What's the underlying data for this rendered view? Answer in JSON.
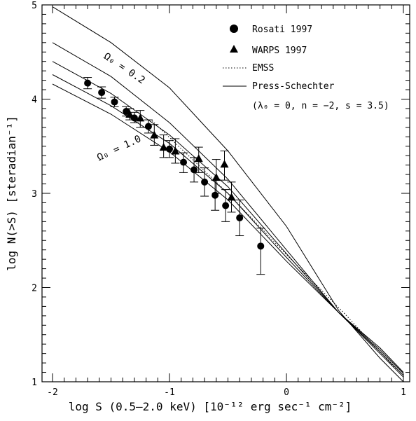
{
  "chart_data": {
    "type": "scatter",
    "title": "",
    "xlabel": "log S (0.5–2.0 keV) [10⁻¹² erg sec⁻¹ cm⁻²]",
    "ylabel": "log N(>S) [steradian⁻¹]",
    "xlim": [
      -2.1,
      1.05
    ],
    "ylim": [
      1,
      5
    ],
    "xticks": [
      "-2",
      "-1",
      "0",
      "1"
    ],
    "yticks": [
      "1",
      "2",
      "3",
      "4",
      "5"
    ],
    "grid": false,
    "legend": {
      "placement": "top-right",
      "entries": [
        {
          "label": "Rosati 1997",
          "marker": "circle"
        },
        {
          "label": "WARPS 1997",
          "marker": "triangle"
        },
        {
          "label": "EMSS",
          "marker": "dotted-line"
        },
        {
          "label": "Press-Schechter",
          "marker": "solid-line"
        }
      ],
      "note": "(λ₀ = 0, n = −2, s = 3.5)"
    },
    "annotations": [
      {
        "text": "Ω₀ = 0.2",
        "x": -1.4,
        "y": 4.3
      },
      {
        "text": "Ω₀ = 1.0",
        "x": -1.42,
        "y": 3.45
      }
    ],
    "series": [
      {
        "name": "Rosati 1997",
        "kind": "points",
        "marker": "circle",
        "points": [
          {
            "x": -1.7,
            "y": 4.17,
            "lo": 4.11,
            "hi": 4.23
          },
          {
            "x": -1.58,
            "y": 4.07,
            "lo": 4.01,
            "hi": 4.13
          },
          {
            "x": -1.47,
            "y": 3.97,
            "lo": 3.92,
            "hi": 4.02
          },
          {
            "x": -1.37,
            "y": 3.87,
            "lo": 3.82,
            "hi": 3.92
          },
          {
            "x": -1.3,
            "y": 3.8,
            "lo": 3.75,
            "hi": 3.86
          },
          {
            "x": -1.18,
            "y": 3.71,
            "lo": 3.64,
            "hi": 3.78
          },
          {
            "x": -1.0,
            "y": 3.47,
            "lo": 3.38,
            "hi": 3.56
          },
          {
            "x": -0.88,
            "y": 3.33,
            "lo": 3.22,
            "hi": 3.43
          },
          {
            "x": -0.79,
            "y": 3.25,
            "lo": 3.12,
            "hi": 3.38
          },
          {
            "x": -0.7,
            "y": 3.12,
            "lo": 2.97,
            "hi": 3.27
          },
          {
            "x": -0.61,
            "y": 2.98,
            "lo": 2.82,
            "hi": 3.14
          },
          {
            "x": -0.52,
            "y": 2.87,
            "lo": 2.7,
            "hi": 3.04
          },
          {
            "x": -0.4,
            "y": 2.74,
            "lo": 2.55,
            "hi": 2.93
          },
          {
            "x": -0.22,
            "y": 2.44,
            "lo": 2.14,
            "hi": 2.63
          }
        ]
      },
      {
        "name": "WARPS 1997",
        "kind": "points",
        "marker": "triangle",
        "points": [
          {
            "x": -1.34,
            "y": 3.84,
            "lo": 3.78,
            "hi": 3.9
          },
          {
            "x": -1.25,
            "y": 3.8,
            "lo": 3.7,
            "hi": 3.88
          },
          {
            "x": -1.13,
            "y": 3.62,
            "lo": 3.51,
            "hi": 3.73
          },
          {
            "x": -1.05,
            "y": 3.49,
            "lo": 3.38,
            "hi": 3.62
          },
          {
            "x": -0.95,
            "y": 3.45,
            "lo": 3.32,
            "hi": 3.58
          },
          {
            "x": -0.75,
            "y": 3.37,
            "lo": 3.22,
            "hi": 3.49
          },
          {
            "x": -0.6,
            "y": 3.17,
            "lo": 3.0,
            "hi": 3.36
          },
          {
            "x": -0.53,
            "y": 3.31,
            "lo": 3.14,
            "hi": 3.45
          },
          {
            "x": -0.47,
            "y": 2.96,
            "lo": 2.8,
            "hi": 3.12
          }
        ]
      },
      {
        "name": "EMSS",
        "kind": "line",
        "style": "dotted",
        "points": [
          [
            -1.15,
            3.77
          ],
          [
            -0.5,
            3.0
          ],
          [
            0.0,
            2.35
          ],
          [
            0.5,
            1.72
          ],
          [
            1.0,
            1.05
          ]
        ]
      },
      {
        "name": "Press-Schechter Ω₀ = 0.2",
        "kind": "line",
        "style": "solid",
        "points": [
          [
            -2.0,
            4.98
          ],
          [
            -1.5,
            4.6
          ],
          [
            -1.0,
            4.12
          ],
          [
            -0.5,
            3.45
          ],
          [
            0.0,
            2.65
          ],
          [
            0.45,
            1.75
          ],
          [
            0.8,
            1.25
          ],
          [
            1.0,
            1.0
          ]
        ]
      },
      {
        "name": "Press-Schechter",
        "kind": "line",
        "style": "solid",
        "points": [
          [
            -2.0,
            4.6
          ],
          [
            -1.5,
            4.24
          ],
          [
            -1.0,
            3.75
          ],
          [
            -0.5,
            3.15
          ],
          [
            0.0,
            2.4
          ],
          [
            0.45,
            1.73
          ],
          [
            0.8,
            1.3
          ],
          [
            1.0,
            1.05
          ]
        ]
      },
      {
        "name": "Press-Schechter",
        "kind": "line",
        "style": "solid",
        "points": [
          [
            -2.0,
            4.4
          ],
          [
            -1.5,
            4.06
          ],
          [
            -1.0,
            3.62
          ],
          [
            -0.5,
            3.07
          ],
          [
            0.0,
            2.36
          ],
          [
            0.45,
            1.73
          ],
          [
            0.8,
            1.32
          ],
          [
            1.0,
            1.07
          ]
        ]
      },
      {
        "name": "Press-Schechter",
        "kind": "line",
        "style": "solid",
        "points": [
          [
            -2.0,
            4.26
          ],
          [
            -1.5,
            3.93
          ],
          [
            -1.0,
            3.53
          ],
          [
            -0.5,
            3.0
          ],
          [
            0.0,
            2.32
          ],
          [
            0.45,
            1.73
          ],
          [
            0.8,
            1.34
          ],
          [
            1.0,
            1.09
          ]
        ]
      },
      {
        "name": "Press-Schechter Ω₀ = 1.0",
        "kind": "line",
        "style": "solid",
        "points": [
          [
            -2.0,
            4.16
          ],
          [
            -1.5,
            3.84
          ],
          [
            -1.0,
            3.44
          ],
          [
            -0.5,
            2.93
          ],
          [
            0.0,
            2.28
          ],
          [
            0.45,
            1.73
          ],
          [
            0.8,
            1.36
          ],
          [
            1.0,
            1.1
          ]
        ]
      }
    ]
  }
}
